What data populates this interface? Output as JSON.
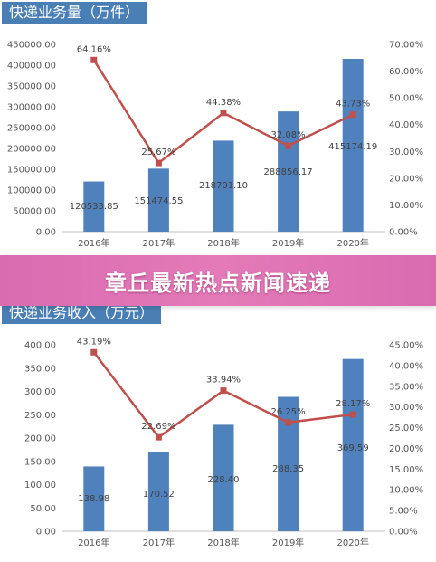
{
  "banner": {
    "title": "章丘最新热点新闻速递"
  },
  "colors": {
    "bar": "#4f81bd",
    "line": "#c0504d",
    "banner": "#e07ab8",
    "title_bg": "#4a7fb5"
  },
  "chart_data": [
    {
      "type": "bar",
      "title": "快递业务量（万件）",
      "categories": [
        "2016年",
        "2017年",
        "2018年",
        "2019年",
        "2020年"
      ],
      "series": [
        {
          "values": [
            120533.85,
            151474.55,
            218701.1,
            288856.17,
            415174.19
          ]
        },
        {
          "values": [
            64.16,
            25.67,
            44.38,
            32.08,
            43.73
          ],
          "axis": "right"
        }
      ],
      "value_labels": [
        "120533.85",
        "151474.55",
        "218701.10",
        "288856.17",
        "415174.19"
      ],
      "rate_labels": [
        "64.16%",
        "25.67%",
        "44.38%",
        "32.08%",
        "43.73%"
      ],
      "ylim": [
        0,
        450000
      ],
      "y_ticks": [
        "0.00",
        "50000.00",
        "100000.00",
        "150000.00",
        "200000.00",
        "250000.00",
        "300000.00",
        "350000.00",
        "400000.00",
        "450000.00"
      ],
      "y2lim": [
        0,
        70
      ],
      "y2_ticks": [
        "0.00%",
        "10.00%",
        "20.00%",
        "30.00%",
        "40.00%",
        "50.00%",
        "60.00%",
        "70.00%"
      ]
    },
    {
      "type": "bar",
      "title": "快递业务收入（万元）",
      "categories": [
        "2016年",
        "2017年",
        "2018年",
        "2019年",
        "2020年"
      ],
      "series": [
        {
          "values": [
            138.98,
            170.52,
            228.4,
            288.35,
            369.59
          ]
        },
        {
          "values": [
            43.19,
            22.69,
            33.94,
            26.25,
            28.17
          ],
          "axis": "right"
        }
      ],
      "value_labels": [
        "138.98",
        "170.52",
        "228.40",
        "288.35",
        "369.59"
      ],
      "rate_labels": [
        "43.19%",
        "22.69%",
        "33.94%",
        "26.25%",
        "28.17%"
      ],
      "ylim": [
        0,
        400
      ],
      "y_ticks": [
        "0.00",
        "50.00",
        "100.00",
        "150.00",
        "200.00",
        "250.00",
        "300.00",
        "350.00",
        "400.00"
      ],
      "y2lim": [
        0,
        45
      ],
      "y2_ticks": [
        "0.00%",
        "5.00%",
        "10.00%",
        "15.00%",
        "20.00%",
        "25.00%",
        "30.00%",
        "35.00%",
        "40.00%",
        "45.00%"
      ]
    }
  ]
}
